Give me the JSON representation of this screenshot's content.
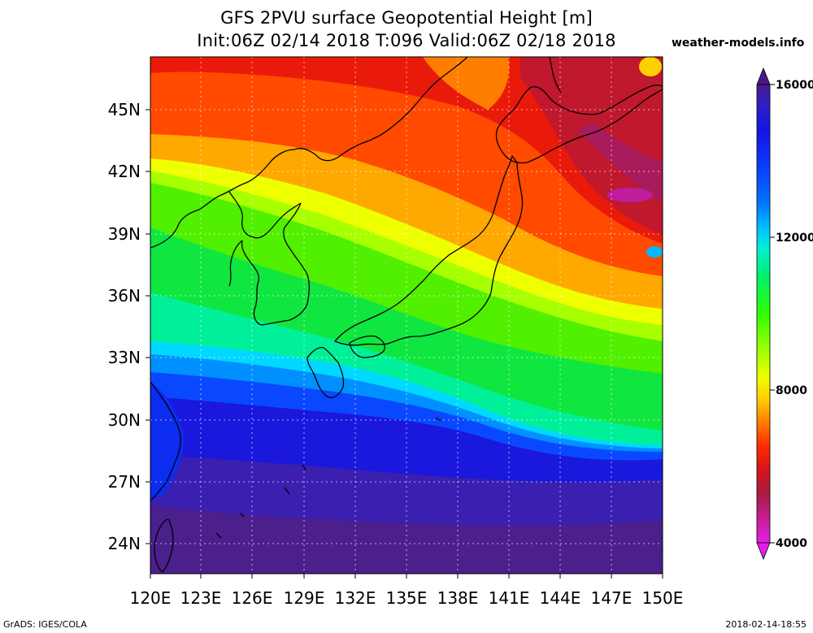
{
  "header": {
    "title": "GFS 2PVU surface Geopotential Height [m]",
    "subtitle": "Init:06Z 02/14 2018 T:096 Valid:06Z 02/18 2018",
    "brand": "weather-models.info"
  },
  "footer": {
    "left": "GrADS: IGES/COLA",
    "right": "2018-02-14-18:55"
  },
  "map": {
    "projection": "lat-lon",
    "lon_range": [
      120,
      150
    ],
    "lat_range": [
      22.5,
      47.5
    ],
    "lon_ticks": [
      "120E",
      "123E",
      "126E",
      "129E",
      "132E",
      "135E",
      "138E",
      "141E",
      "144E",
      "147E",
      "150E"
    ],
    "lat_ticks": [
      "45N",
      "42N",
      "39N",
      "36N",
      "33N",
      "30N",
      "27N",
      "24N"
    ],
    "gridlines": "dotted",
    "coastlines": true
  },
  "colorbar": {
    "labels": [
      "16000",
      "12000",
      "8000",
      "4000"
    ],
    "min": 4000,
    "max": 16000,
    "colors": [
      "#dd1ddd",
      "#c31d9e",
      "#a01c47",
      "#ce1418",
      "#ee1a0c",
      "#ff3c00",
      "#ff6a00",
      "#ff9a00",
      "#ffd500",
      "#ffff00",
      "#d2ff00",
      "#a0ff00",
      "#50ff00",
      "#00f050",
      "#00f5a0",
      "#00e5ff",
      "#00b0ff",
      "#0070ff",
      "#0038ff",
      "#1010e0",
      "#3020c0",
      "#3a1a9a",
      "#4a1a8a"
    ]
  }
}
